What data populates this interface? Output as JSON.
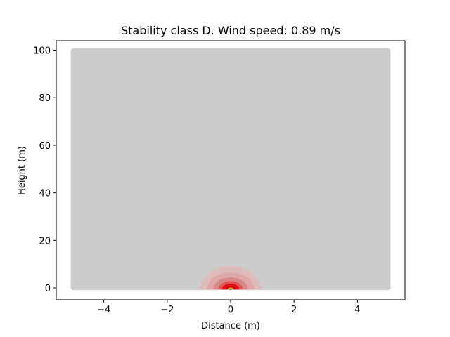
{
  "chart_data": {
    "type": "heatmap",
    "title": "Stability class D. Wind speed: 0.89 m/s",
    "xlabel": "Distance (m)",
    "ylabel": "Height (m)",
    "xlim": [
      -5.5,
      5.5
    ],
    "ylim": [
      -5,
      104
    ],
    "xticks": [
      -4,
      -2,
      0,
      2,
      4
    ],
    "xtick_labels": [
      "−4",
      "−2",
      "0",
      "2",
      "4"
    ],
    "yticks": [
      0,
      20,
      40,
      60,
      80,
      100
    ],
    "ytick_labels": [
      "0",
      "20",
      "40",
      "60",
      "80",
      "100"
    ],
    "grid": false,
    "domain": {
      "x": [
        -5,
        5
      ],
      "y": [
        0,
        100
      ]
    },
    "background_color": "#cccccc",
    "plume": {
      "source": [
        0,
        0
      ],
      "layers": [
        {
          "rx": 0.95,
          "ry": 9.8,
          "color": "#e4b4b4",
          "opacity": 0.7
        },
        {
          "rx": 0.75,
          "ry": 7.0,
          "color": "#dca0a0",
          "opacity": 0.75
        },
        {
          "rx": 0.55,
          "ry": 5.0,
          "color": "#d58080",
          "opacity": 0.8
        },
        {
          "rx": 0.38,
          "ry": 3.5,
          "color": "#e05050",
          "opacity": 0.9
        },
        {
          "rx": 0.27,
          "ry": 2.4,
          "color": "#e01010",
          "opacity": 1.0
        },
        {
          "rx": 0.16,
          "ry": 1.3,
          "color": "#cc0000",
          "opacity": 1.0
        },
        {
          "rx": 0.09,
          "ry": 0.8,
          "color": "#ffaa00",
          "opacity": 1.0
        },
        {
          "rx": 0.05,
          "ry": 0.45,
          "color": "#33cc33",
          "opacity": 1.0
        },
        {
          "rx": 0.025,
          "ry": 0.25,
          "color": "#1f3f9f",
          "opacity": 1.0
        }
      ]
    }
  }
}
